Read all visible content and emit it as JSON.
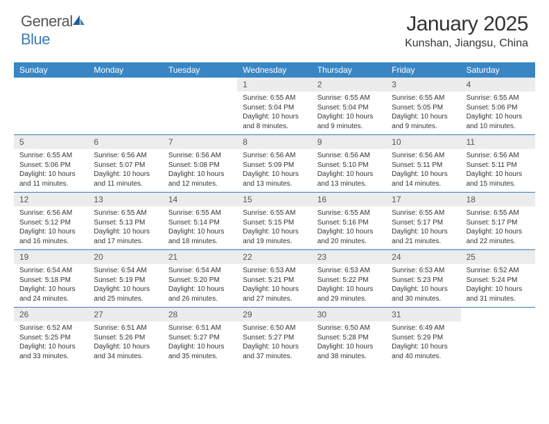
{
  "brand": {
    "general": "General",
    "blue": "Blue"
  },
  "title": "January 2025",
  "location": "Kunshan, Jiangsu, China",
  "colors": {
    "header_bg": "#3a86c4",
    "header_text": "#ffffff",
    "daynum_bg": "#ececec",
    "border": "#3a7ab8",
    "brand_blue": "#3a7ab8",
    "text": "#333333"
  },
  "dow": [
    "Sunday",
    "Monday",
    "Tuesday",
    "Wednesday",
    "Thursday",
    "Friday",
    "Saturday"
  ],
  "weeks": [
    [
      null,
      null,
      null,
      {
        "n": "1",
        "sr": "6:55 AM",
        "ss": "5:04 PM",
        "dl": "10 hours and 8 minutes."
      },
      {
        "n": "2",
        "sr": "6:55 AM",
        "ss": "5:04 PM",
        "dl": "10 hours and 9 minutes."
      },
      {
        "n": "3",
        "sr": "6:55 AM",
        "ss": "5:05 PM",
        "dl": "10 hours and 9 minutes."
      },
      {
        "n": "4",
        "sr": "6:55 AM",
        "ss": "5:06 PM",
        "dl": "10 hours and 10 minutes."
      }
    ],
    [
      {
        "n": "5",
        "sr": "6:55 AM",
        "ss": "5:06 PM",
        "dl": "10 hours and 11 minutes."
      },
      {
        "n": "6",
        "sr": "6:56 AM",
        "ss": "5:07 PM",
        "dl": "10 hours and 11 minutes."
      },
      {
        "n": "7",
        "sr": "6:56 AM",
        "ss": "5:08 PM",
        "dl": "10 hours and 12 minutes."
      },
      {
        "n": "8",
        "sr": "6:56 AM",
        "ss": "5:09 PM",
        "dl": "10 hours and 13 minutes."
      },
      {
        "n": "9",
        "sr": "6:56 AM",
        "ss": "5:10 PM",
        "dl": "10 hours and 13 minutes."
      },
      {
        "n": "10",
        "sr": "6:56 AM",
        "ss": "5:11 PM",
        "dl": "10 hours and 14 minutes."
      },
      {
        "n": "11",
        "sr": "6:56 AM",
        "ss": "5:11 PM",
        "dl": "10 hours and 15 minutes."
      }
    ],
    [
      {
        "n": "12",
        "sr": "6:56 AM",
        "ss": "5:12 PM",
        "dl": "10 hours and 16 minutes."
      },
      {
        "n": "13",
        "sr": "6:55 AM",
        "ss": "5:13 PM",
        "dl": "10 hours and 17 minutes."
      },
      {
        "n": "14",
        "sr": "6:55 AM",
        "ss": "5:14 PM",
        "dl": "10 hours and 18 minutes."
      },
      {
        "n": "15",
        "sr": "6:55 AM",
        "ss": "5:15 PM",
        "dl": "10 hours and 19 minutes."
      },
      {
        "n": "16",
        "sr": "6:55 AM",
        "ss": "5:16 PM",
        "dl": "10 hours and 20 minutes."
      },
      {
        "n": "17",
        "sr": "6:55 AM",
        "ss": "5:17 PM",
        "dl": "10 hours and 21 minutes."
      },
      {
        "n": "18",
        "sr": "6:55 AM",
        "ss": "5:17 PM",
        "dl": "10 hours and 22 minutes."
      }
    ],
    [
      {
        "n": "19",
        "sr": "6:54 AM",
        "ss": "5:18 PM",
        "dl": "10 hours and 24 minutes."
      },
      {
        "n": "20",
        "sr": "6:54 AM",
        "ss": "5:19 PM",
        "dl": "10 hours and 25 minutes."
      },
      {
        "n": "21",
        "sr": "6:54 AM",
        "ss": "5:20 PM",
        "dl": "10 hours and 26 minutes."
      },
      {
        "n": "22",
        "sr": "6:53 AM",
        "ss": "5:21 PM",
        "dl": "10 hours and 27 minutes."
      },
      {
        "n": "23",
        "sr": "6:53 AM",
        "ss": "5:22 PM",
        "dl": "10 hours and 29 minutes."
      },
      {
        "n": "24",
        "sr": "6:53 AM",
        "ss": "5:23 PM",
        "dl": "10 hours and 30 minutes."
      },
      {
        "n": "25",
        "sr": "6:52 AM",
        "ss": "5:24 PM",
        "dl": "10 hours and 31 minutes."
      }
    ],
    [
      {
        "n": "26",
        "sr": "6:52 AM",
        "ss": "5:25 PM",
        "dl": "10 hours and 33 minutes."
      },
      {
        "n": "27",
        "sr": "6:51 AM",
        "ss": "5:26 PM",
        "dl": "10 hours and 34 minutes."
      },
      {
        "n": "28",
        "sr": "6:51 AM",
        "ss": "5:27 PM",
        "dl": "10 hours and 35 minutes."
      },
      {
        "n": "29",
        "sr": "6:50 AM",
        "ss": "5:27 PM",
        "dl": "10 hours and 37 minutes."
      },
      {
        "n": "30",
        "sr": "6:50 AM",
        "ss": "5:28 PM",
        "dl": "10 hours and 38 minutes."
      },
      {
        "n": "31",
        "sr": "6:49 AM",
        "ss": "5:29 PM",
        "dl": "10 hours and 40 minutes."
      },
      null
    ]
  ],
  "labels": {
    "sunrise": "Sunrise: ",
    "sunset": "Sunset: ",
    "daylight": "Daylight: "
  }
}
